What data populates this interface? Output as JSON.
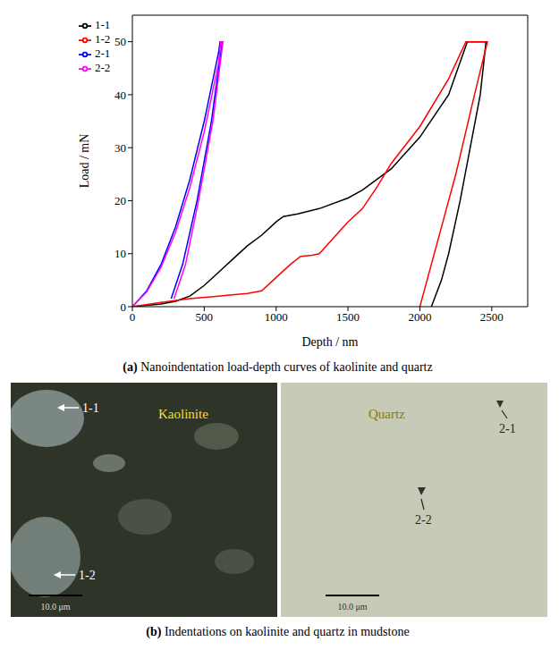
{
  "chart_data": {
    "type": "line",
    "title": "(a) Nanoindentation load-depth curves of kaolinite and quartz",
    "x_label": "Depth / nm",
    "y_label": "Load / mN",
    "xlim": [
      0,
      2750
    ],
    "xticks": [
      0,
      500,
      1000,
      1500,
      2000,
      2500
    ],
    "ylim": [
      0,
      55
    ],
    "yticks": [
      0,
      10,
      20,
      30,
      40,
      50
    ],
    "legend": "upper left",
    "series": [
      {
        "name": "1-1",
        "color": "#000000",
        "x": [
          0,
          200,
          300,
          400,
          500,
          600,
          700,
          800,
          900,
          1000,
          1050,
          1150,
          1300,
          1500,
          1600,
          1800,
          2000,
          2200,
          2330,
          2460,
          2420,
          2350,
          2280,
          2200,
          2150,
          2080
        ],
        "values": [
          0,
          0.5,
          1,
          2,
          4,
          6.5,
          9,
          11.5,
          13.5,
          16,
          17,
          17.5,
          18.5,
          20.5,
          22,
          26,
          32,
          40,
          50,
          50,
          40,
          30,
          20,
          10,
          5,
          0
        ]
      },
      {
        "name": "1-2",
        "color": "#ff0000",
        "x": [
          0,
          200,
          400,
          600,
          800,
          900,
          1000,
          1100,
          1170,
          1250,
          1300,
          1400,
          1500,
          1600,
          1700,
          1800,
          2000,
          2200,
          2320,
          2470,
          2380,
          2250,
          2150,
          2050,
          2000
        ],
        "values": [
          0,
          0.8,
          1.5,
          2,
          2.5,
          3,
          5.5,
          8,
          9.5,
          9.7,
          10,
          13,
          16,
          18.5,
          22.5,
          27,
          34,
          43,
          50,
          50,
          40,
          25,
          15,
          5,
          0
        ]
      },
      {
        "name": "2-1",
        "color": "#0000ff",
        "x": [
          0,
          100,
          200,
          300,
          400,
          500,
          600,
          610,
          625,
          550,
          450,
          350,
          270
        ],
        "values": [
          0,
          3,
          8,
          15,
          24,
          35,
          48,
          50,
          50,
          35,
          20,
          8,
          1.5
        ]
      },
      {
        "name": "2-2",
        "color": "#ff00ff",
        "x": [
          0,
          100,
          200,
          300,
          400,
          500,
          600,
          615,
          630,
          560,
          460,
          370,
          290
        ],
        "values": [
          0,
          2.8,
          7.5,
          14,
          22.5,
          33,
          46,
          50,
          50,
          35,
          20,
          8,
          1.5
        ]
      }
    ]
  },
  "figure_b": {
    "caption": "(b) Indentations on kaolinite and quartz in mudstone",
    "regions": [
      {
        "name": "Kaolinite",
        "indents": [
          "1-1",
          "1-2"
        ],
        "scale_bar": "10.0 μm"
      },
      {
        "name": "Quartz",
        "indents": [
          "2-1",
          "2-2"
        ],
        "scale_bar": "10.0 μm"
      }
    ]
  }
}
